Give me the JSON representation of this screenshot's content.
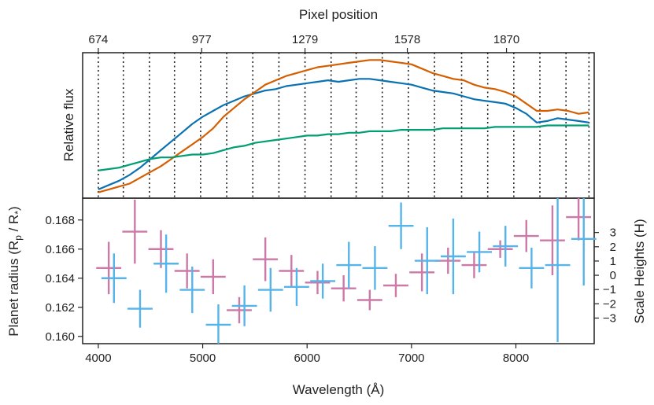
{
  "colors": {
    "blue_spectrum": "#0b72b1",
    "orange_spectrum": "#d55e00",
    "green_spectrum": "#009e73",
    "magenta_points": "#cc79a7",
    "cyan_points": "#56b4e9",
    "axes": "#222222"
  },
  "chart_data": [
    {
      "type": "line",
      "panel": "top",
      "ylabel": "Relative flux",
      "top_axis": {
        "label": "Pixel position",
        "tick_wavelengths": [
          4000,
          4990,
          5980,
          6960,
          7910
        ],
        "tick_labels": [
          "674",
          "977",
          "1279",
          "1578",
          "1870"
        ]
      },
      "xlim": [
        3850,
        8750
      ],
      "ylim": [
        0,
        1
      ],
      "y_ticks_shown": false,
      "bin_edges": [
        4000,
        4240,
        4490,
        4730,
        4980,
        5230,
        5480,
        5730,
        5980,
        6230,
        6470,
        6720,
        6970,
        7220,
        7480,
        7730,
        7980,
        8230,
        8480,
        8700
      ],
      "x": [
        4000,
        4100,
        4200,
        4300,
        4400,
        4500,
        4600,
        4700,
        4800,
        4900,
        5000,
        5100,
        5200,
        5300,
        5400,
        5500,
        5600,
        5700,
        5800,
        5900,
        6000,
        6100,
        6200,
        6300,
        6400,
        6500,
        6600,
        6700,
        6800,
        6900,
        7000,
        7100,
        7200,
        7300,
        7400,
        7500,
        7600,
        7700,
        7800,
        7900,
        8000,
        8100,
        8200,
        8300,
        8400,
        8500,
        8600,
        8700
      ],
      "series": [
        {
          "color": "blue",
          "values": [
            0.06,
            0.09,
            0.12,
            0.16,
            0.21,
            0.27,
            0.33,
            0.39,
            0.45,
            0.51,
            0.56,
            0.6,
            0.64,
            0.67,
            0.7,
            0.72,
            0.74,
            0.75,
            0.77,
            0.78,
            0.79,
            0.8,
            0.81,
            0.8,
            0.81,
            0.82,
            0.82,
            0.81,
            0.8,
            0.79,
            0.78,
            0.76,
            0.74,
            0.73,
            0.72,
            0.7,
            0.68,
            0.67,
            0.66,
            0.65,
            0.62,
            0.58,
            0.52,
            0.53,
            0.55,
            0.54,
            0.53,
            0.52
          ]
        },
        {
          "color": "orange",
          "values": [
            0.04,
            0.06,
            0.08,
            0.1,
            0.14,
            0.18,
            0.22,
            0.27,
            0.32,
            0.37,
            0.42,
            0.48,
            0.56,
            0.62,
            0.68,
            0.73,
            0.78,
            0.81,
            0.84,
            0.86,
            0.88,
            0.9,
            0.91,
            0.92,
            0.93,
            0.94,
            0.95,
            0.95,
            0.94,
            0.93,
            0.92,
            0.89,
            0.86,
            0.84,
            0.82,
            0.81,
            0.78,
            0.76,
            0.75,
            0.73,
            0.7,
            0.65,
            0.6,
            0.6,
            0.61,
            0.6,
            0.58,
            0.59
          ]
        },
        {
          "color": "green",
          "values": [
            0.19,
            0.2,
            0.21,
            0.23,
            0.25,
            0.27,
            0.28,
            0.28,
            0.29,
            0.3,
            0.3,
            0.31,
            0.33,
            0.35,
            0.36,
            0.38,
            0.39,
            0.4,
            0.41,
            0.42,
            0.43,
            0.43,
            0.44,
            0.44,
            0.45,
            0.45,
            0.46,
            0.46,
            0.46,
            0.47,
            0.47,
            0.47,
            0.47,
            0.48,
            0.48,
            0.48,
            0.48,
            0.48,
            0.49,
            0.49,
            0.49,
            0.49,
            0.49,
            0.5,
            0.5,
            0.5,
            0.5,
            0.5
          ]
        }
      ]
    },
    {
      "type": "scatter",
      "panel": "bottom",
      "xlabel": "Wavelength (Å)",
      "ylabel": "Planet radius (R",
      "ylabel_sub": "p",
      "ylabel_mid": " / R",
      "ylabel_sub2": "*",
      "ylabel_end": ")",
      "y2label": "Scale Heights (H)",
      "xlim": [
        3850,
        8750
      ],
      "ylim": [
        0.1595,
        0.1695
      ],
      "x_ticks": [
        4000,
        5000,
        6000,
        7000,
        8000
      ],
      "y_ticks": [
        0.16,
        0.162,
        0.164,
        0.166,
        0.168
      ],
      "y2_ticks": [
        -3,
        -2,
        -1,
        0,
        1,
        2,
        3
      ],
      "y2_zero": 0.1642,
      "y2_per_unit": 0.00098,
      "series": [
        {
          "color": "magenta",
          "x": [
            4100,
            4350,
            4600,
            4850,
            5100,
            5350,
            5600,
            5850,
            6100,
            6350,
            6600,
            6850,
            7100,
            7350,
            7600,
            7850,
            8100,
            8350,
            8600
          ],
          "xerr": [
            120,
            120,
            120,
            120,
            120,
            120,
            120,
            120,
            120,
            120,
            120,
            120,
            120,
            120,
            120,
            120,
            120,
            120,
            120
          ],
          "y": [
            0.1647,
            0.1672,
            0.166,
            0.1645,
            0.1641,
            0.1618,
            0.1653,
            0.1645,
            0.1637,
            0.1633,
            0.1625,
            0.1635,
            0.1644,
            0.1652,
            0.1649,
            0.166,
            0.1669,
            0.1666,
            0.1682
          ],
          "yerr": [
            0.0018,
            0.0022,
            0.0013,
            0.0012,
            0.0012,
            0.0009,
            0.0015,
            0.0011,
            0.0008,
            0.0009,
            0.0007,
            0.0008,
            0.0013,
            0.0009,
            0.0009,
            0.0006,
            0.0011,
            0.0024,
            0.0016
          ]
        },
        {
          "color": "cyan",
          "x": [
            4150,
            4400,
            4650,
            4900,
            5150,
            5400,
            5650,
            5900,
            6150,
            6400,
            6650,
            6900,
            7150,
            7400,
            7650,
            7900,
            8150,
            8400,
            8650
          ],
          "xerr": [
            120,
            120,
            120,
            120,
            120,
            120,
            120,
            120,
            120,
            120,
            120,
            120,
            120,
            120,
            120,
            120,
            120,
            120,
            120
          ],
          "y": [
            0.164,
            0.1619,
            0.165,
            0.1632,
            0.1608,
            0.1621,
            0.1632,
            0.1634,
            0.1638,
            0.1649,
            0.1647,
            0.1676,
            0.1652,
            0.1655,
            0.1658,
            0.1662,
            0.1647,
            0.1649,
            0.1667
          ],
          "yerr": [
            0.0017,
            0.0013,
            0.002,
            0.0016,
            0.0014,
            0.0014,
            0.0015,
            0.0013,
            0.0012,
            0.0016,
            0.0015,
            0.0016,
            0.0023,
            0.0026,
            0.0014,
            0.0014,
            0.0014,
            0.0053,
            0.0032
          ]
        }
      ]
    }
  ]
}
